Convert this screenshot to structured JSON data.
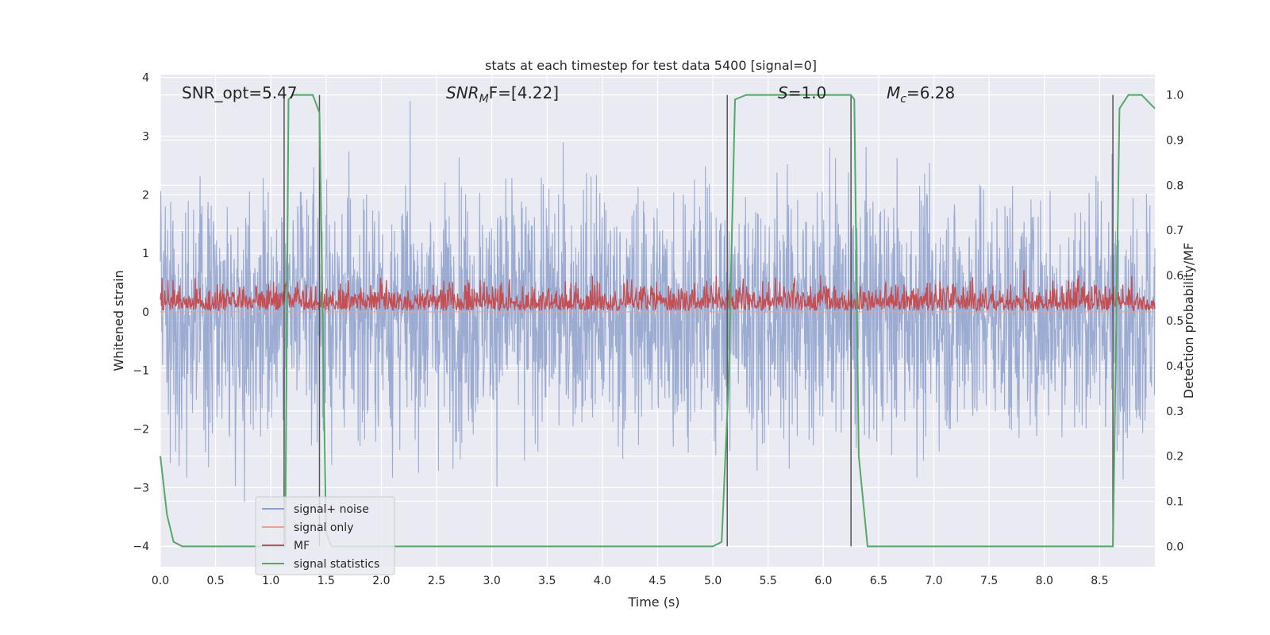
{
  "chart_data": {
    "type": "line",
    "title": "stats at each timestep for test data 5400 [signal=0]",
    "xlabel": "Time (s)",
    "ylabel_left": "Whitened strain",
    "ylabel_right": "Detection probability/MF",
    "xlim": [
      0.0,
      9.0
    ],
    "ylim_left": [
      -4.35,
      4.05
    ],
    "ylim_right": [
      -0.045,
      1.045
    ],
    "x_ticks": [
      "0.0",
      "0.5",
      "1.0",
      "1.5",
      "2.0",
      "2.5",
      "3.0",
      "3.5",
      "4.0",
      "4.5",
      "5.0",
      "5.5",
      "6.0",
      "6.5",
      "7.0",
      "7.5",
      "8.0",
      "8.5"
    ],
    "y_ticks_left": [
      "4",
      "3",
      "2",
      "1",
      "0",
      "−1",
      "−2",
      "−3",
      "−4"
    ],
    "y_ticks_right": [
      "1.0",
      "0.9",
      "0.8",
      "0.7",
      "0.6",
      "0.5",
      "0.4",
      "0.3",
      "0.2",
      "0.1",
      "0.0"
    ],
    "grid": true,
    "legend_position": "lower-left",
    "annotations": {
      "snr_opt": "SNR_opt=5.47",
      "snr_mf_symbol": "SNR",
      "snr_mf_sub": "M",
      "snr_mf_rest": "F=[4.22]",
      "s_symbol": "S",
      "s_rest": "=1.0",
      "mc_symbol": "M",
      "mc_sub": "c",
      "mc_rest": "=6.28"
    },
    "series": [
      {
        "name": "signal+ noise",
        "color": "#8da0cb",
        "axis": "left",
        "description_range": [
          -3.8,
          3.6
        ]
      },
      {
        "name": "signal only",
        "color": "#e9a38a",
        "axis": "left",
        "values": 0
      },
      {
        "name": "MF",
        "color": "#c44e52",
        "axis": "left",
        "band": [
          0.0,
          1.0
        ]
      },
      {
        "name": "signal statistics",
        "color": "#55a868",
        "axis": "right",
        "x": [
          0.0,
          0.06,
          0.12,
          0.2,
          0.4,
          1.0,
          1.13,
          1.16,
          1.2,
          1.3,
          1.38,
          1.44,
          1.5,
          1.55,
          2.0,
          3.0,
          4.0,
          5.0,
          5.08,
          5.14,
          5.2,
          5.3,
          5.5,
          6.0,
          6.25,
          6.28,
          6.32,
          6.4,
          6.5,
          7.5,
          8.5,
          8.62,
          8.68,
          8.76,
          8.82,
          8.88,
          8.96,
          9.0
        ],
        "values": [
          0.2,
          0.07,
          0.01,
          0.0,
          0.0,
          0.0,
          0.0,
          0.99,
          1.0,
          1.0,
          1.0,
          0.96,
          0.03,
          0.0,
          0.0,
          0.0,
          0.0,
          0.0,
          0.01,
          0.35,
          0.99,
          1.0,
          1.0,
          1.0,
          1.0,
          0.99,
          0.2,
          0.0,
          0.0,
          0.0,
          0.0,
          0.0,
          0.97,
          1.0,
          1.0,
          1.0,
          0.98,
          0.97
        ]
      }
    ],
    "vertical_lines_x": [
      1.12,
      1.44,
      5.13,
      6.25,
      8.62
    ]
  },
  "colors": {
    "plot_bg": "#eaeaf2",
    "grid": "#ffffff",
    "vline": "#555555"
  }
}
